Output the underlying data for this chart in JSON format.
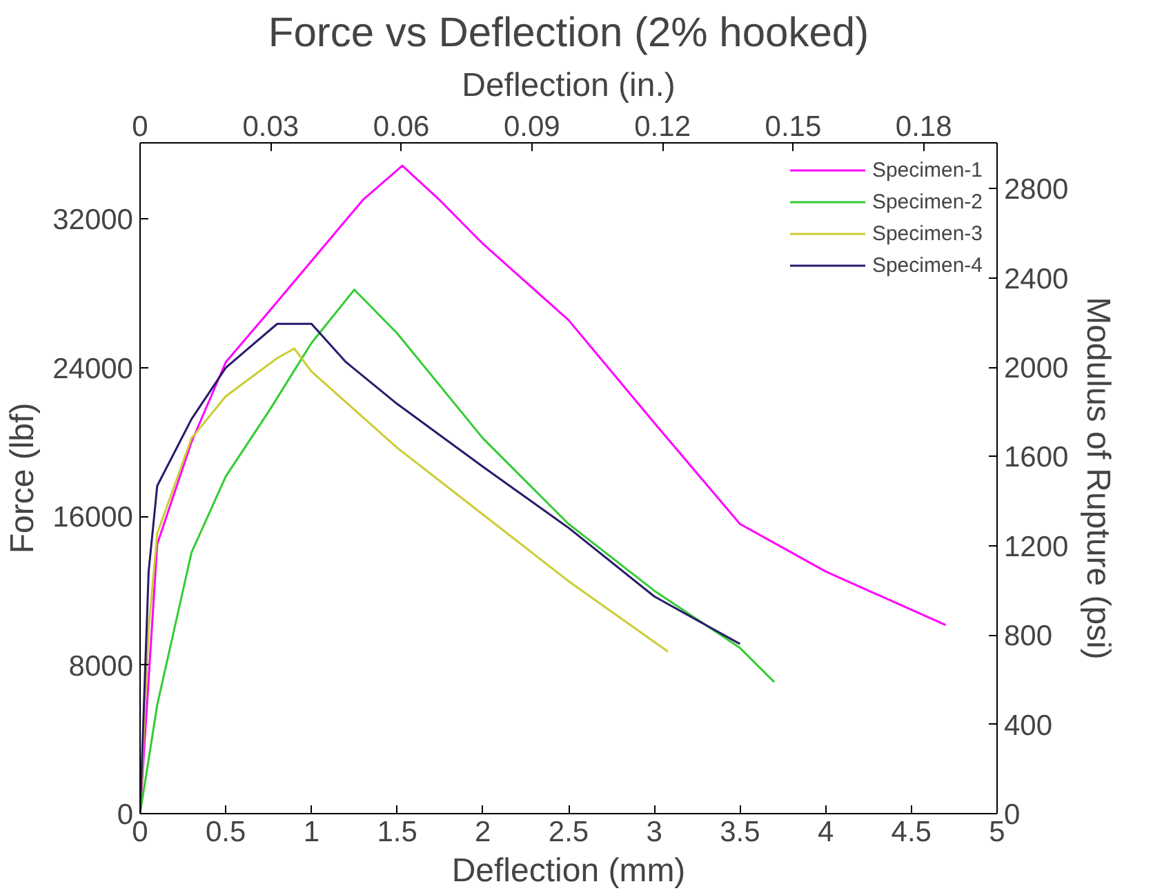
{
  "chart_data": {
    "type": "line",
    "title": "Force vs Deflection (2% hooked)",
    "xlabel": "Deflection (mm)",
    "x2label": "Deflection (in.)",
    "ylabel": "Force (lbf)",
    "y2label": "Modulus of Rupture (psi)",
    "xlim": [
      0,
      5
    ],
    "xticks": [
      0,
      0.5,
      1,
      1.5,
      2,
      2.5,
      3,
      3.5,
      4,
      4.5,
      5
    ],
    "x2lim": [
      0,
      0.19685
    ],
    "x2ticks": [
      0,
      0.03,
      0.06,
      0.09,
      0.12,
      0.15,
      0.18
    ],
    "ylim": [
      0,
      36100
    ],
    "yticks": [
      0,
      8000,
      16000,
      24000,
      32000
    ],
    "y2lim": [
      0,
      3005
    ],
    "y2ticks": [
      0,
      400,
      800,
      1200,
      1600,
      2000,
      2400,
      2800
    ],
    "grid": false,
    "legend": "top right",
    "line_style": "solid",
    "marker": "none",
    "series": [
      {
        "name": "Specimen-1",
        "color": "#ff00ff",
        "x": [
          0,
          0.1,
          0.3,
          0.5,
          0.75,
          1,
          1.3,
          1.53,
          1.75,
          2,
          2.5,
          3,
          3.5,
          4,
          4.7
        ],
        "values": [
          0,
          14500,
          20000,
          24300,
          27000,
          29740,
          33030,
          34870,
          33000,
          30670,
          26560,
          21030,
          15590,
          13030,
          10150
        ]
      },
      {
        "name": "Specimen-2",
        "color": "#33cc33",
        "x": [
          0,
          0.1,
          0.3,
          0.5,
          0.75,
          1,
          1.25,
          1.5,
          2,
          2.5,
          3,
          3.5,
          3.7
        ],
        "values": [
          0,
          5850,
          14050,
          18150,
          21640,
          25330,
          28200,
          25850,
          20200,
          15590,
          12000,
          8920,
          7080
        ]
      },
      {
        "name": "Specimen-3",
        "color": "#cccc33",
        "x": [
          0,
          0.05,
          0.1,
          0.3,
          0.5,
          0.8,
          0.9,
          1,
          1.5,
          2,
          2.5,
          3.08
        ],
        "values": [
          0,
          9950,
          15080,
          20200,
          22460,
          24510,
          25030,
          23790,
          19690,
          16100,
          12510,
          8720
        ]
      },
      {
        "name": "Specimen-4",
        "color": "#2a1a6b",
        "x": [
          0,
          0.05,
          0.1,
          0.3,
          0.5,
          0.8,
          1,
          1.2,
          1.5,
          2,
          2.5,
          3,
          3.5
        ],
        "values": [
          0,
          13030,
          17640,
          21230,
          24000,
          26360,
          26360,
          24310,
          22050,
          18670,
          15380,
          11690,
          9130
        ]
      }
    ]
  }
}
